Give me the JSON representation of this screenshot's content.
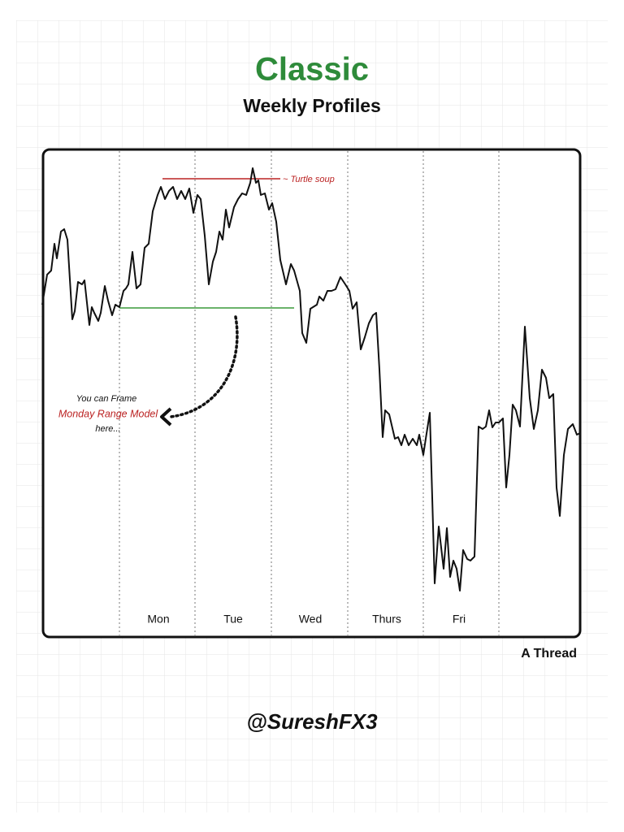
{
  "header": {
    "title": "Classic",
    "subtitle": "Weekly Profiles"
  },
  "days": [
    "Mon",
    "Tue",
    "Wed",
    "Thurs",
    "Fri"
  ],
  "annotations": {
    "turtle": "~ Turtle soup",
    "line1": "You can Frame",
    "line2": "Monday Range Model",
    "line3": "here..."
  },
  "footer": {
    "thread": "A Thread",
    "handle": "@SureshFX3"
  }
}
